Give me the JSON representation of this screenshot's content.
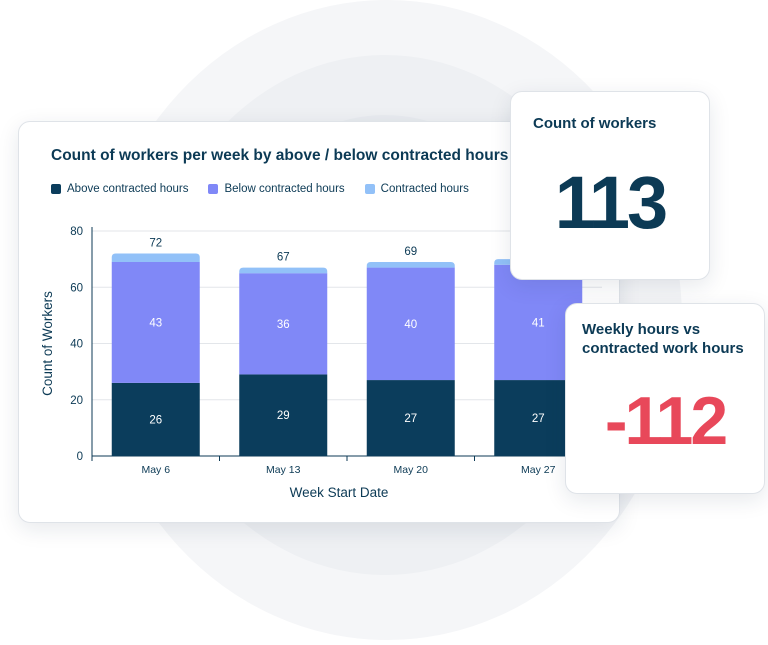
{
  "chart_data": {
    "type": "bar",
    "stacked": true,
    "title": "Count of workers per week by above / below contracted hours",
    "xlabel": "Week Start Date",
    "ylabel": "Count of Workers",
    "ylim": [
      0,
      80
    ],
    "yticks": [
      0,
      20,
      40,
      60,
      80
    ],
    "categories": [
      "May 6",
      "May 13",
      "May 20",
      "May 27"
    ],
    "totals": [
      72,
      67,
      69,
      70
    ],
    "legend_position": "top-left",
    "grid": true,
    "series": [
      {
        "name": "Above contracted hours",
        "color": "#0b3d5c",
        "values": [
          26,
          29,
          27,
          27
        ],
        "labels_shown": true
      },
      {
        "name": "Below contracted hours",
        "color": "#8088f7",
        "values": [
          43,
          36,
          40,
          41
        ],
        "labels_shown": true
      },
      {
        "name": "Contracted hours",
        "color": "#92c1f8",
        "values": [
          3,
          2,
          2,
          2
        ],
        "labels_shown": false
      }
    ]
  },
  "kpis": {
    "count_workers": {
      "title": "Count of workers",
      "value": "113",
      "color": "#0c3a55"
    },
    "weekly_hours": {
      "title": "Weekly hours vs contracted work hours",
      "value": "-112",
      "color": "#e8485a"
    }
  }
}
